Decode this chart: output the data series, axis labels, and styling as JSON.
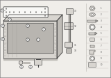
{
  "bg_color": "#f0eeea",
  "line_color": "#4a4a4a",
  "light_gray": "#d8d5d0",
  "mid_gray": "#b8b5b0",
  "dark_gray": "#989590",
  "white": "#f8f8f6",
  "shadow": "#c0bdb8"
}
